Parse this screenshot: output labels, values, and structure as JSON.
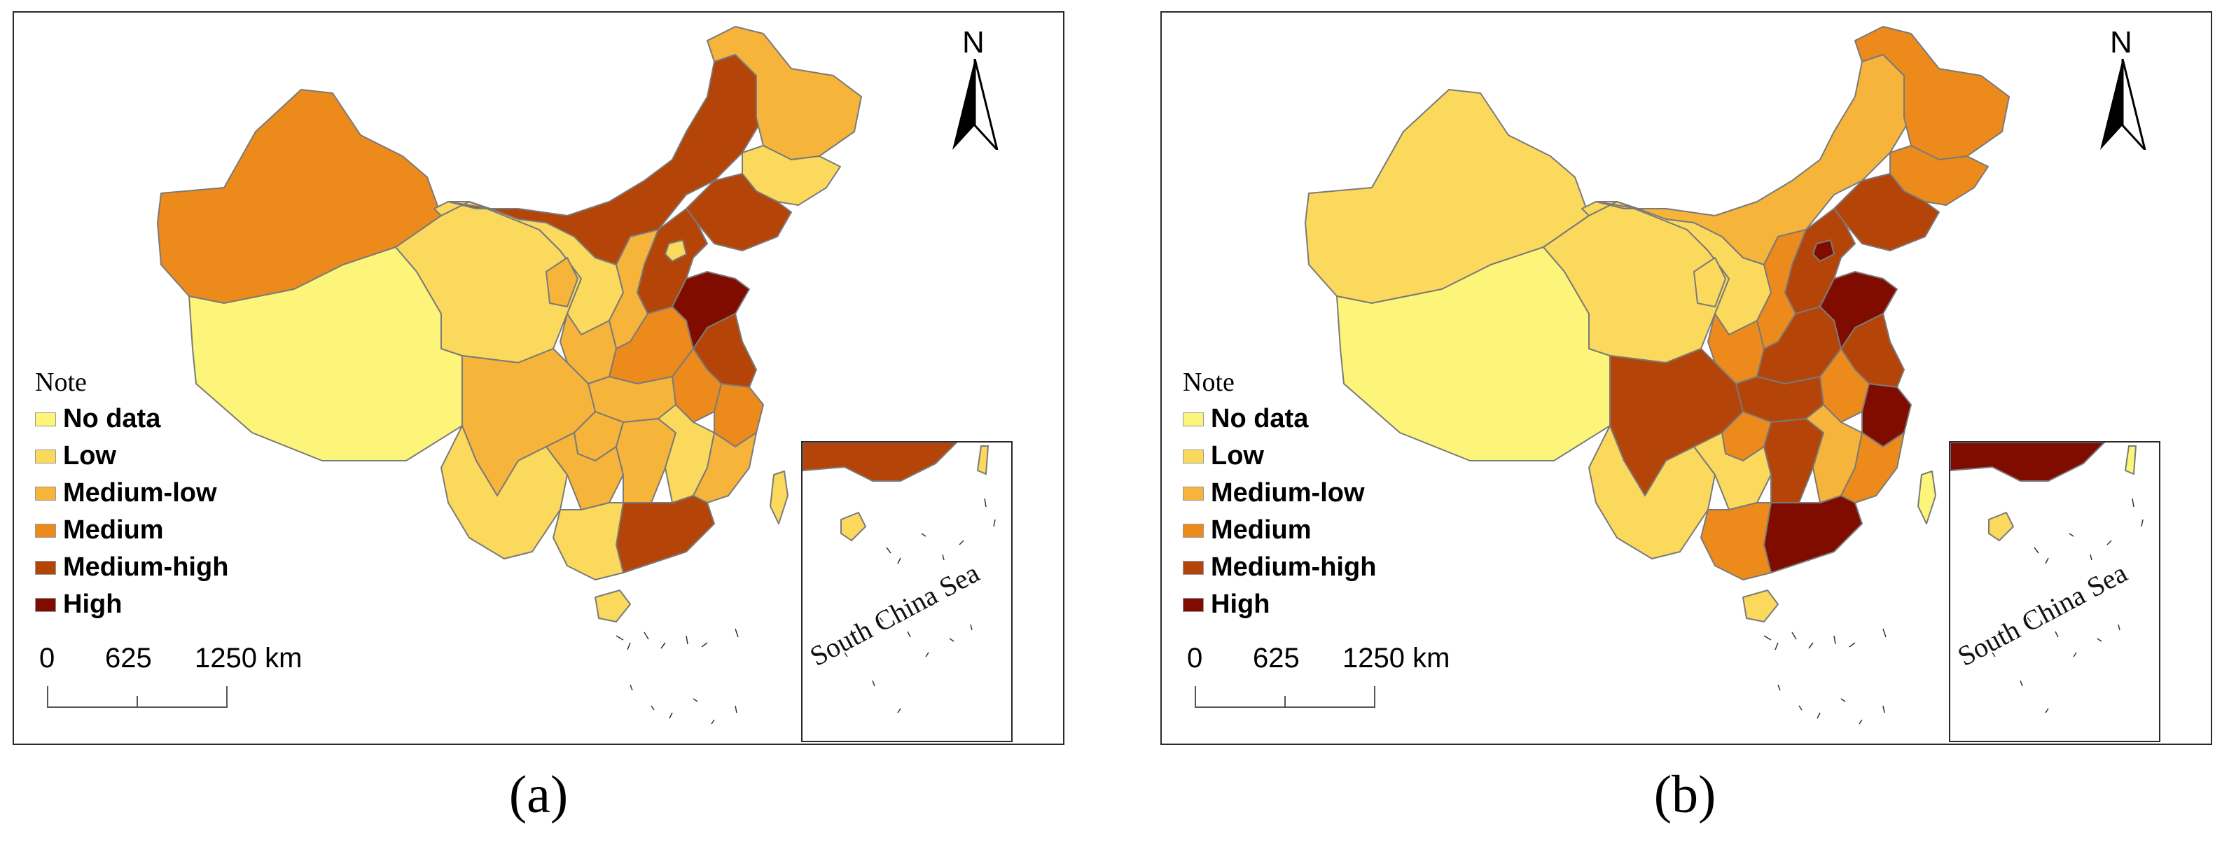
{
  "colors": {
    "no_data": "#fcf57a",
    "low": "#fbd95c",
    "medium_low": "#f6b43b",
    "medium": "#ec8b1c",
    "medium_high": "#b54409",
    "high": "#800c00",
    "border": "#7a7a7a"
  },
  "legend": {
    "title": "Note",
    "items": [
      {
        "key": "no_data",
        "label": "No data"
      },
      {
        "key": "low",
        "label": "Low"
      },
      {
        "key": "medium_low",
        "label": "Medium-low"
      },
      {
        "key": "medium",
        "label": "Medium"
      },
      {
        "key": "medium_high",
        "label": "Medium-high"
      },
      {
        "key": "high",
        "label": "High"
      }
    ]
  },
  "north_arrow": {
    "label": "N"
  },
  "scale_bar": {
    "ticks": [
      "0",
      "625",
      "1250 km"
    ]
  },
  "inset": {
    "label": "South China Sea"
  },
  "panels": [
    {
      "caption": "(a)",
      "regions": {
        "xinjiang": "medium",
        "tibet": "no_data",
        "qinghai": "low",
        "gansu": "low",
        "inner_mongolia": "medium_high",
        "heilongjiang": "medium_low",
        "jilin": "low",
        "liaoning": "medium_high",
        "hebei": "medium_high",
        "beijing": "low",
        "shanxi": "medium_low",
        "shaanxi": "medium_low",
        "ningxia": "medium_low",
        "henan": "medium",
        "shandong": "high",
        "jiangsu": "medium_high",
        "anhui": "medium",
        "hubei": "medium_low",
        "sichuan": "medium_low",
        "chongqing": "medium_low",
        "yunnan": "low",
        "guizhou": "medium_low",
        "hunan": "medium_low",
        "jiangxi": "low",
        "zhejiang": "medium",
        "fujian": "medium_low",
        "guangdong": "medium_high",
        "guangxi": "low",
        "hainan": "low",
        "taiwan": "low"
      }
    },
    {
      "caption": "(b)",
      "regions": {
        "xinjiang": "low",
        "tibet": "no_data",
        "qinghai": "low",
        "gansu": "low",
        "inner_mongolia": "medium_low",
        "heilongjiang": "medium",
        "jilin": "medium",
        "liaoning": "medium_high",
        "hebei": "medium_high",
        "beijing": "high",
        "shanxi": "medium",
        "shaanxi": "medium",
        "ningxia": "low",
        "henan": "medium_high",
        "shandong": "high",
        "jiangsu": "medium_high",
        "anhui": "medium",
        "hubei": "medium_high",
        "sichuan": "medium_high",
        "chongqing": "medium",
        "yunnan": "low",
        "guizhou": "low",
        "hunan": "medium_high",
        "jiangxi": "medium_low",
        "zhejiang": "high",
        "fujian": "medium",
        "guangdong": "high",
        "guangxi": "medium",
        "hainan": "low",
        "taiwan": "no_data"
      }
    }
  ]
}
